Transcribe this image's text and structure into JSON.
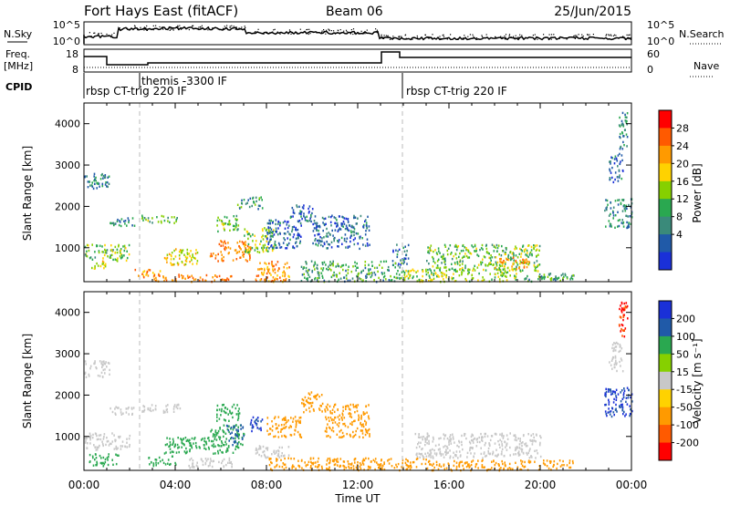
{
  "header": {
    "station": "Fort Hays East (fitACF)",
    "beam": "Beam 06",
    "date": "25/Jun/2015"
  },
  "nsky_panel": {
    "left_label": "N.Sky",
    "left_ticks": [
      "10^5",
      "10^0"
    ],
    "right_ticks": [
      "10^5",
      "10^0"
    ],
    "right_label": "N.Search"
  },
  "freq_panel": {
    "left_label_1": "Freq.",
    "left_label_2": "[MHz]",
    "left_ticks": [
      "18",
      "8"
    ],
    "right_ticks": [
      "60",
      "0"
    ],
    "right_label": "Nave"
  },
  "cpid_panel": {
    "label": "CPID",
    "segments": [
      {
        "text": "rbsp CT-trig 220 IF"
      },
      {
        "text": "themis -3300 IF"
      },
      {
        "text": "rbsp CT-trig 220 IF"
      }
    ]
  },
  "power_colorbar": {
    "label": "Power [dB]",
    "ticks": [
      "28",
      "24",
      "20",
      "16",
      "12",
      "8",
      "4"
    ],
    "colors": [
      "#ff0000",
      "#ff5a00",
      "#ff9a00",
      "#ffd200",
      "#86d000",
      "#2aa850",
      "#3a8a7a",
      "#205aa8",
      "#1a30d8"
    ]
  },
  "velocity_colorbar": {
    "label": "Velocity [m s⁻¹]",
    "ticks": [
      "200",
      "100",
      "50",
      "15",
      "-15",
      "-50",
      "-100",
      "-200"
    ],
    "colors": [
      "#1a30d8",
      "#205aa8",
      "#2aa850",
      "#86d000",
      "#c8c8c8",
      "#ffd200",
      "#ff9a00",
      "#ff5a00",
      "#ff0000"
    ]
  },
  "chart_data": [
    {
      "type": "heatmap",
      "title": "Power",
      "ylabel": "Slant Range [km]",
      "yticks": [
        "4000",
        "3000",
        "2000",
        "1000"
      ],
      "xlim": [
        0,
        24
      ],
      "ylim": [
        180,
        4500
      ],
      "colorbar": "Power [dB]",
      "regions": [
        {
          "t0": 0.0,
          "t1": 1.1,
          "r0": 2450,
          "r1": 2850,
          "v": 8
        },
        {
          "t0": 0.0,
          "t1": 2.0,
          "r0": 700,
          "r1": 1100,
          "v": 12
        },
        {
          "t0": 0.2,
          "t1": 1.0,
          "r0": 500,
          "r1": 700,
          "v": 16
        },
        {
          "t0": 1.0,
          "t1": 2.2,
          "r0": 1550,
          "r1": 1750,
          "v": 8
        },
        {
          "t0": 2.5,
          "t1": 4.2,
          "r0": 1600,
          "r1": 1800,
          "v": 12
        },
        {
          "t0": 2.2,
          "t1": 3.5,
          "r0": 300,
          "r1": 500,
          "v": 20
        },
        {
          "t0": 3.5,
          "t1": 5.0,
          "r0": 600,
          "r1": 1000,
          "v": 16
        },
        {
          "t0": 3.0,
          "t1": 6.5,
          "r0": 200,
          "r1": 380,
          "v": 22
        },
        {
          "t0": 5.5,
          "t1": 7.3,
          "r0": 700,
          "r1": 1200,
          "v": 22
        },
        {
          "t0": 5.8,
          "t1": 6.8,
          "r0": 1400,
          "r1": 1800,
          "v": 12
        },
        {
          "t0": 6.7,
          "t1": 7.8,
          "r0": 1950,
          "r1": 2250,
          "v": 10
        },
        {
          "t0": 7.0,
          "t1": 8.3,
          "r0": 900,
          "r1": 1500,
          "v": 14
        },
        {
          "t0": 7.5,
          "t1": 9.0,
          "r0": 200,
          "r1": 700,
          "v": 20
        },
        {
          "t0": 8.0,
          "t1": 9.5,
          "r0": 1000,
          "r1": 1700,
          "v": 6
        },
        {
          "t0": 9.0,
          "t1": 10.0,
          "r0": 1600,
          "r1": 2050,
          "v": 6
        },
        {
          "t0": 9.5,
          "t1": 14.0,
          "r0": 200,
          "r1": 700,
          "v": 10
        },
        {
          "t0": 10.0,
          "t1": 12.5,
          "r0": 1000,
          "r1": 1800,
          "v": 6
        },
        {
          "t0": 13.5,
          "t1": 14.2,
          "r0": 600,
          "r1": 1100,
          "v": 6
        },
        {
          "t0": 14.0,
          "t1": 19.0,
          "r0": 200,
          "r1": 500,
          "v": 14
        },
        {
          "t0": 15.0,
          "t1": 20.0,
          "r0": 450,
          "r1": 1100,
          "v": 12
        },
        {
          "t0": 18.0,
          "t1": 19.5,
          "r0": 500,
          "r1": 800,
          "v": 20
        },
        {
          "t0": 19.0,
          "t1": 21.5,
          "r0": 200,
          "r1": 400,
          "v": 10
        },
        {
          "t0": 22.8,
          "t1": 24.0,
          "r0": 1500,
          "r1": 2200,
          "v": 8
        },
        {
          "t0": 23.0,
          "t1": 23.6,
          "r0": 2600,
          "r1": 3300,
          "v": 6
        },
        {
          "t0": 23.4,
          "t1": 23.8,
          "r0": 3400,
          "r1": 4300,
          "v": 8
        }
      ]
    },
    {
      "type": "heatmap",
      "title": "Velocity",
      "xlabel": "Time UT",
      "ylabel": "Slant Range [km]",
      "yticks": [
        "4000",
        "3000",
        "2000",
        "1000"
      ],
      "xticks": [
        "00:00",
        "04:00",
        "08:00",
        "12:00",
        "16:00",
        "20:00",
        "00:00"
      ],
      "xlim": [
        0,
        24
      ],
      "ylim": [
        180,
        4500
      ],
      "colorbar": "Velocity [m s⁻¹]",
      "regions": [
        {
          "t0": 0.0,
          "t1": 1.1,
          "r0": 2450,
          "r1": 2850,
          "v": 0
        },
        {
          "t0": 0.0,
          "t1": 2.0,
          "r0": 700,
          "r1": 1100,
          "v": 0
        },
        {
          "t0": 0.2,
          "t1": 1.5,
          "r0": 300,
          "r1": 600,
          "v": 40
        },
        {
          "t0": 1.0,
          "t1": 2.2,
          "r0": 1550,
          "r1": 1750,
          "v": 0
        },
        {
          "t0": 2.5,
          "t1": 4.2,
          "r0": 1600,
          "r1": 1800,
          "v": 0
        },
        {
          "t0": 2.8,
          "t1": 4.0,
          "r0": 300,
          "r1": 550,
          "v": 40
        },
        {
          "t0": 3.5,
          "t1": 5.5,
          "r0": 600,
          "r1": 1000,
          "v": 40
        },
        {
          "t0": 4.5,
          "t1": 6.5,
          "r0": 250,
          "r1": 500,
          "v": 0
        },
        {
          "t0": 5.5,
          "t1": 7.0,
          "r0": 600,
          "r1": 1300,
          "v": 40
        },
        {
          "t0": 6.2,
          "t1": 7.0,
          "r0": 800,
          "r1": 1300,
          "v": 120
        },
        {
          "t0": 5.8,
          "t1": 6.8,
          "r0": 1400,
          "r1": 1800,
          "v": 40
        },
        {
          "t0": 7.2,
          "t1": 7.8,
          "r0": 1150,
          "r1": 1500,
          "v": 150
        },
        {
          "t0": 7.5,
          "t1": 9.0,
          "r0": 500,
          "r1": 800,
          "v": 0
        },
        {
          "t0": 8.0,
          "t1": 9.5,
          "r0": 1000,
          "r1": 1500,
          "v": -60
        },
        {
          "t0": 9.5,
          "t1": 10.5,
          "r0": 1600,
          "r1": 2100,
          "v": -60
        },
        {
          "t0": 8.0,
          "t1": 15.0,
          "r0": 200,
          "r1": 500,
          "v": -40
        },
        {
          "t0": 10.5,
          "t1": 12.5,
          "r0": 1000,
          "r1": 1800,
          "v": -60
        },
        {
          "t0": 14.5,
          "t1": 20.0,
          "r0": 500,
          "r1": 1100,
          "v": 0
        },
        {
          "t0": 15.0,
          "t1": 21.5,
          "r0": 200,
          "r1": 450,
          "v": -40
        },
        {
          "t0": 22.8,
          "t1": 24.0,
          "r0": 1500,
          "r1": 2200,
          "v": 150
        },
        {
          "t0": 23.0,
          "t1": 23.6,
          "r0": 2600,
          "r1": 3300,
          "v": 0
        },
        {
          "t0": 23.4,
          "t1": 23.8,
          "r0": 3400,
          "r1": 4300,
          "v": -150
        }
      ]
    }
  ]
}
